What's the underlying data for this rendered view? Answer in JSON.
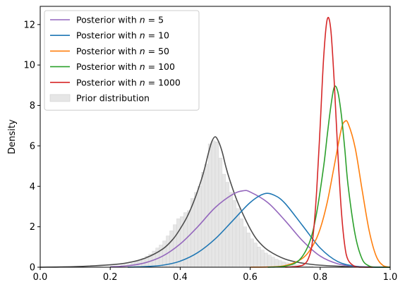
{
  "chart_data": {
    "type": "line",
    "title": "",
    "xlabel": "",
    "ylabel": "Density",
    "xlim": [
      0.0,
      1.0
    ],
    "ylim": [
      0,
      12.9
    ],
    "grid": false,
    "legend_placement": "top-left",
    "x_ticks": [
      0.0,
      0.2,
      0.4,
      0.6,
      0.8,
      1.0
    ],
    "x_tick_labels": [
      "0.0",
      "0.2",
      "0.4",
      "0.6",
      "0.8",
      "1.0"
    ],
    "y_ticks": [
      0,
      2,
      4,
      6,
      8,
      10,
      12
    ],
    "y_tick_labels": [
      "0",
      "2",
      "4",
      "6",
      "8",
      "10",
      "12"
    ],
    "series": [
      {
        "name": "Posterior with n = 5",
        "color": "#9467bd",
        "x": [
          0.2,
          0.25,
          0.3,
          0.35,
          0.4,
          0.45,
          0.5,
          0.55,
          0.58,
          0.6,
          0.65,
          0.7,
          0.75,
          0.8,
          0.85,
          0.9,
          0.95,
          1.0
        ],
        "y": [
          0.02,
          0.07,
          0.22,
          0.55,
          1.15,
          2.0,
          2.95,
          3.6,
          3.78,
          3.72,
          3.2,
          2.3,
          1.3,
          0.55,
          0.17,
          0.04,
          0.01,
          0.0
        ]
      },
      {
        "name": "Posterior with n = 10",
        "color": "#1f77b4",
        "x": [
          0.25,
          0.3,
          0.35,
          0.4,
          0.45,
          0.5,
          0.55,
          0.6,
          0.64,
          0.67,
          0.7,
          0.75,
          0.8,
          0.85,
          0.9,
          0.95,
          1.0
        ],
        "y": [
          0.0,
          0.03,
          0.1,
          0.3,
          0.72,
          1.4,
          2.3,
          3.2,
          3.63,
          3.55,
          3.15,
          2.05,
          0.95,
          0.28,
          0.05,
          0.0,
          0.0
        ]
      },
      {
        "name": "Posterior with n = 50",
        "color": "#ff7f0e",
        "x": [
          0.6,
          0.65,
          0.7,
          0.75,
          0.78,
          0.8,
          0.82,
          0.84,
          0.86,
          0.87,
          0.88,
          0.9,
          0.92,
          0.94,
          0.96,
          0.98,
          1.0
        ],
        "y": [
          0.0,
          0.01,
          0.08,
          0.45,
          1.1,
          1.9,
          3.2,
          5.0,
          6.8,
          7.2,
          7.1,
          5.9,
          3.8,
          1.8,
          0.55,
          0.08,
          0.0
        ]
      },
      {
        "name": "Posterior with n = 100",
        "color": "#2ca02c",
        "x": [
          0.65,
          0.7,
          0.74,
          0.77,
          0.79,
          0.81,
          0.82,
          0.83,
          0.84,
          0.85,
          0.86,
          0.87,
          0.88,
          0.9,
          0.92,
          0.94,
          0.96,
          1.0
        ],
        "y": [
          0.0,
          0.05,
          0.35,
          1.25,
          2.7,
          5.0,
          6.5,
          7.9,
          8.9,
          8.7,
          7.6,
          5.9,
          4.0,
          1.6,
          0.4,
          0.06,
          0.0,
          0.0
        ]
      },
      {
        "name": "Posterior with n = 1000",
        "color": "#d62728",
        "x": [
          0.7,
          0.75,
          0.77,
          0.78,
          0.79,
          0.8,
          0.81,
          0.82,
          0.83,
          0.84,
          0.85,
          0.86,
          0.87,
          0.88,
          0.9,
          0.92,
          0.95
        ],
        "y": [
          0.0,
          0.1,
          0.6,
          1.6,
          3.8,
          7.0,
          10.4,
          12.25,
          11.8,
          9.2,
          5.8,
          2.9,
          1.1,
          0.35,
          0.03,
          0.0,
          0.0
        ]
      },
      {
        "name": "",
        "color": "#4d4d4d",
        "x": [
          0.0,
          0.1,
          0.2,
          0.25,
          0.3,
          0.35,
          0.38,
          0.4,
          0.42,
          0.44,
          0.46,
          0.47,
          0.48,
          0.49,
          0.5,
          0.51,
          0.52,
          0.53,
          0.54,
          0.56,
          0.58,
          0.6,
          0.62,
          0.65,
          0.7,
          0.75,
          0.8,
          0.9,
          1.0
        ],
        "y": [
          0.0,
          0.03,
          0.12,
          0.22,
          0.45,
          0.9,
          1.4,
          1.9,
          2.5,
          3.3,
          4.3,
          4.9,
          5.6,
          6.2,
          6.45,
          6.2,
          5.7,
          5.0,
          4.4,
          3.4,
          2.6,
          1.9,
          1.35,
          0.85,
          0.4,
          0.2,
          0.1,
          0.02,
          0.0
        ]
      }
    ],
    "prior_histogram": {
      "name": "Prior distribution",
      "color": "#e6e6e6",
      "edge_color": "#cfcfcf",
      "bin_width": 0.01,
      "bin_centers": [
        0.235,
        0.245,
        0.255,
        0.265,
        0.275,
        0.285,
        0.295,
        0.305,
        0.315,
        0.325,
        0.335,
        0.345,
        0.355,
        0.365,
        0.375,
        0.385,
        0.395,
        0.405,
        0.415,
        0.425,
        0.435,
        0.445,
        0.455,
        0.465,
        0.475,
        0.485,
        0.495,
        0.505,
        0.515,
        0.525,
        0.535,
        0.545,
        0.555,
        0.565,
        0.575,
        0.585,
        0.595,
        0.605,
        0.615,
        0.625,
        0.635,
        0.645,
        0.655,
        0.665,
        0.675,
        0.685,
        0.695,
        0.705,
        0.715,
        0.725,
        0.735,
        0.745,
        0.755,
        0.765,
        0.775
      ],
      "heights": [
        0.1,
        0.12,
        0.15,
        0.2,
        0.28,
        0.35,
        0.45,
        0.55,
        0.65,
        0.8,
        0.95,
        1.1,
        1.3,
        1.55,
        1.8,
        2.1,
        2.4,
        2.5,
        2.7,
        2.8,
        3.4,
        3.7,
        4.0,
        4.7,
        5.1,
        6.1,
        6.25,
        6.2,
        5.4,
        4.6,
        4.2,
        3.7,
        3.3,
        2.9,
        2.4,
        2.0,
        1.7,
        1.4,
        1.2,
        1.0,
        0.85,
        0.7,
        0.6,
        0.5,
        0.4,
        0.33,
        0.27,
        0.22,
        0.18,
        0.15,
        0.12,
        0.1,
        0.08,
        0.06,
        0.05
      ]
    }
  }
}
